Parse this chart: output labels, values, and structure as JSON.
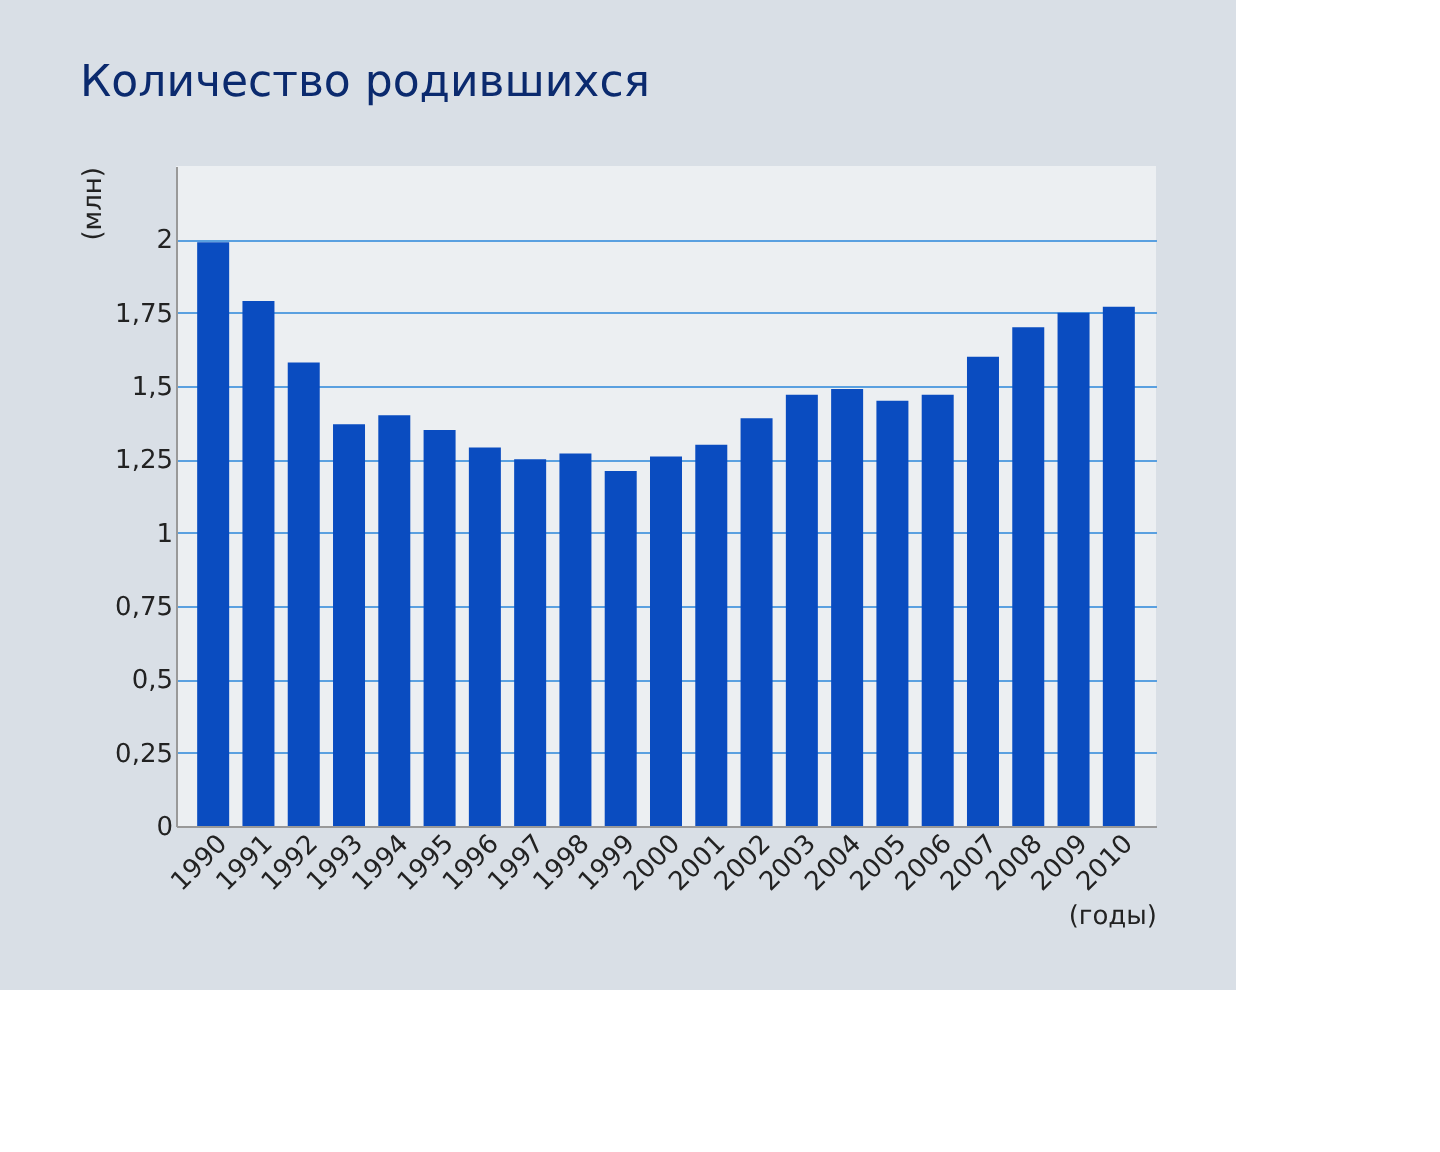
{
  "chart_data": {
    "type": "bar",
    "title": "Количество родившихся",
    "xlabel": "(годы)",
    "ylabel": "(млн)",
    "categories": [
      "1990",
      "1991",
      "1992",
      "1993",
      "1994",
      "1995",
      "1996",
      "1997",
      "1998",
      "1999",
      "2000",
      "2001",
      "2002",
      "2003",
      "2004",
      "2005",
      "2006",
      "2007",
      "2008",
      "2009",
      "2010"
    ],
    "values": [
      1.99,
      1.79,
      1.58,
      1.37,
      1.4,
      1.35,
      1.29,
      1.25,
      1.27,
      1.21,
      1.26,
      1.3,
      1.39,
      1.47,
      1.49,
      1.45,
      1.47,
      1.6,
      1.7,
      1.75,
      1.77
    ],
    "color": "#0a4cc0",
    "ylim": [
      0,
      2.25
    ],
    "yticks": [
      0,
      {
        "value": 0.25,
        "label": "0,25"
      },
      {
        "value": 0.5,
        "label": "0,5"
      },
      {
        "value": 0.75,
        "label": "0,75"
      },
      1,
      {
        "value": 1.25,
        "label": "1,25"
      },
      {
        "value": 1.5,
        "label": "1,5"
      },
      {
        "value": 1.75,
        "label": "1,75"
      },
      2
    ],
    "grid": "y"
  }
}
